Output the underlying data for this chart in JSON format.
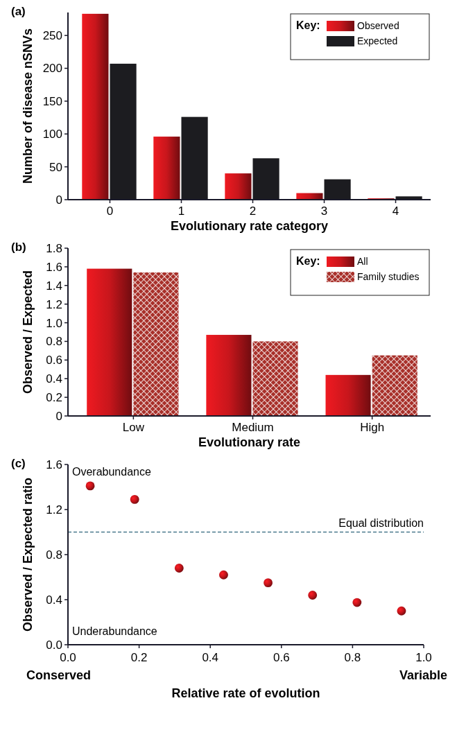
{
  "chart_data": [
    {
      "type": "bar",
      "title": "(a)",
      "xlabel": "Evolutionary rate category",
      "ylabel": "Number of disease nSNVs",
      "categories": [
        "0",
        "1",
        "2",
        "3",
        "4"
      ],
      "legend_title": "Key:",
      "legend": "top right",
      "ylim": [
        0,
        285
      ],
      "yticks": [
        0,
        50,
        100,
        150,
        200,
        250
      ],
      "series": [
        {
          "name": "Observed",
          "color": "#c8161c",
          "values": [
            283,
            96,
            40,
            10,
            2
          ]
        },
        {
          "name": "Expected",
          "color": "#1c1c20",
          "values": [
            207,
            126,
            63,
            31,
            5
          ]
        }
      ]
    },
    {
      "type": "bar",
      "title": "(b)",
      "xlabel": "Evolutionary rate",
      "ylabel": "Observed / Expected",
      "categories": [
        "Low",
        "Medium",
        "High"
      ],
      "legend_title": "Key:",
      "legend": "top right",
      "ylim": [
        0,
        1.8
      ],
      "yticks": [
        0,
        0.2,
        0.4,
        0.6,
        0.8,
        {
          "value": 1,
          "label": "1.0"
        },
        1.2,
        1.4,
        1.6,
        1.8
      ],
      "series": [
        {
          "name": "All",
          "color": "#c8161c",
          "values": [
            1.58,
            0.87,
            0.44
          ]
        },
        {
          "name": "Family studies",
          "color": "#a8302a",
          "values": [
            1.54,
            0.8,
            0.65
          ]
        }
      ]
    },
    {
      "type": "scatter",
      "title": "(c)",
      "xlabel": "Relative rate of evolution",
      "ylabel": "Observed / Expected ratio",
      "marker": "circle",
      "xlim": [
        0,
        1
      ],
      "xticks": [
        {
          "value": 0,
          "label": "0.0"
        },
        0.2,
        0.4,
        0.6,
        0.8,
        {
          "value": 1,
          "label": "1.0"
        }
      ],
      "ylim": [
        0,
        1.6
      ],
      "yticks": [
        {
          "value": 0,
          "label": "0.0"
        },
        0.4,
        0.8,
        1.2,
        1.6
      ],
      "series": [
        {
          "color": "#c0141a",
          "x": [
            0.0625,
            0.1875,
            0.3125,
            0.4375,
            0.5625,
            0.6875,
            0.8125,
            0.9375
          ],
          "values": [
            1.41,
            1.29,
            0.68,
            0.62,
            0.55,
            0.44,
            0.375,
            0.3
          ]
        }
      ],
      "ref_lines": [
        {
          "axis": "y",
          "value": 1,
          "label": "Equal distribution",
          "color": "#4a7a8c",
          "line_style": "dashed"
        }
      ],
      "annotations": [
        "Overabundance",
        "Underabundance",
        "Conserved",
        "Variable"
      ]
    }
  ]
}
